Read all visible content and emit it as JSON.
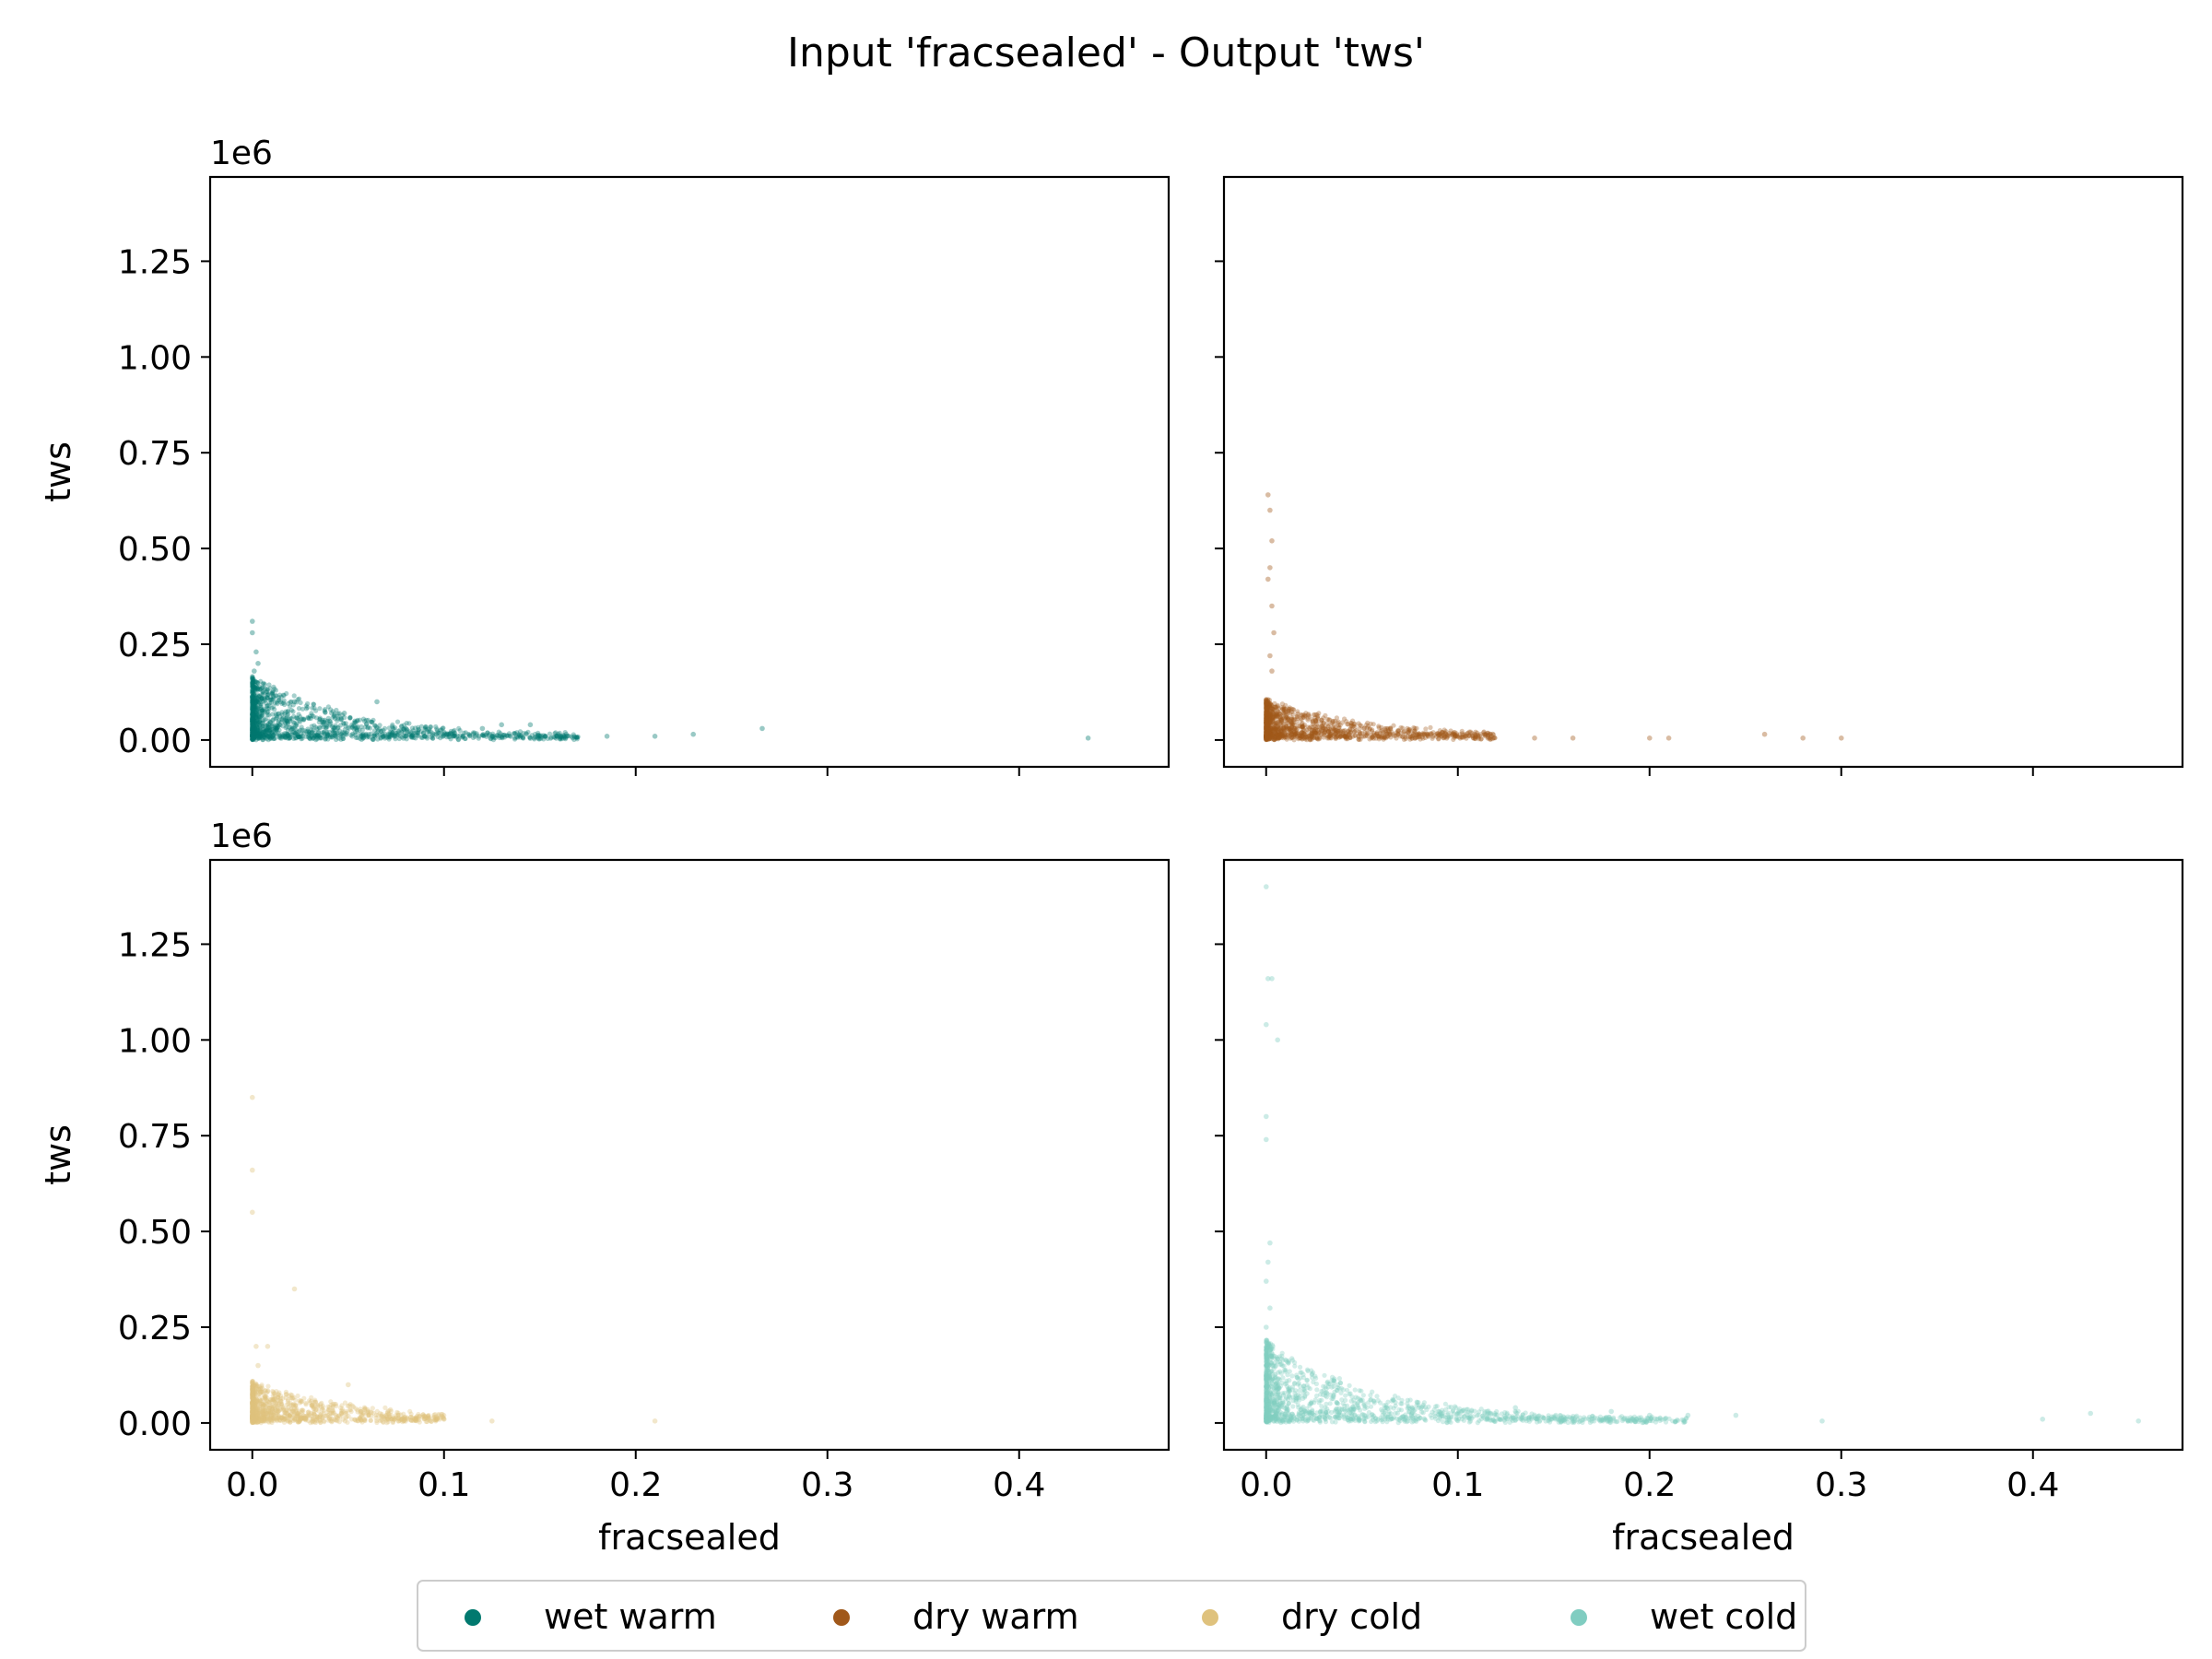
{
  "figure": {
    "title": "Input 'fracsealed' - Output 'tws'"
  },
  "chart_data": [
    {
      "type": "scatter",
      "series_key": "wet_warm",
      "xlabel": "",
      "ylabel": "tws",
      "y_offset_label": "1e6",
      "xlim": [
        -0.022,
        0.478
      ],
      "ylim": [
        -0.07,
        1.47
      ],
      "x_ticks": [
        0.0,
        0.1,
        0.2,
        0.3,
        0.4
      ],
      "y_ticks": [
        0.0,
        0.25,
        0.5,
        0.75,
        1.0,
        1.25
      ],
      "x_tick_labels": [],
      "y_tick_labels": [
        "0.00",
        "0.25",
        "0.50",
        "0.75",
        "1.00",
        "1.25"
      ],
      "color": "#01796f",
      "outliers": [
        [
          0.0,
          0.31
        ],
        [
          0.0,
          0.28
        ],
        [
          0.002,
          0.23
        ],
        [
          0.003,
          0.2
        ],
        [
          0.001,
          0.18
        ],
        [
          0.022,
          0.1
        ],
        [
          0.065,
          0.1
        ],
        [
          0.048,
          0.07
        ],
        [
          0.13,
          0.04
        ],
        [
          0.145,
          0.04
        ],
        [
          0.164,
          0.01
        ],
        [
          0.185,
          0.01
        ],
        [
          0.21,
          0.01
        ],
        [
          0.23,
          0.015
        ],
        [
          0.266,
          0.03
        ],
        [
          0.436,
          0.005
        ],
        [
          0.12,
          0.03
        ],
        [
          0.1,
          0.02
        ],
        [
          0.09,
          0.01
        ]
      ],
      "cluster": {
        "x_max": 0.17,
        "y_max": 0.16,
        "count": 1400
      }
    },
    {
      "type": "scatter",
      "series_key": "dry_warm",
      "xlabel": "",
      "ylabel": "",
      "y_offset_label": "",
      "xlim": [
        -0.022,
        0.478
      ],
      "ylim": [
        -0.07,
        1.47
      ],
      "x_ticks": [
        0.0,
        0.1,
        0.2,
        0.3,
        0.4
      ],
      "y_ticks": [
        0.0,
        0.25,
        0.5,
        0.75,
        1.0,
        1.25
      ],
      "x_tick_labels": [],
      "y_tick_labels": [],
      "color": "#a0581a",
      "outliers": [
        [
          0.001,
          0.64
        ],
        [
          0.002,
          0.6
        ],
        [
          0.003,
          0.52
        ],
        [
          0.002,
          0.45
        ],
        [
          0.001,
          0.42
        ],
        [
          0.003,
          0.35
        ],
        [
          0.004,
          0.28
        ],
        [
          0.002,
          0.22
        ],
        [
          0.003,
          0.18
        ],
        [
          0.01,
          0.08
        ],
        [
          0.02,
          0.06
        ],
        [
          0.14,
          0.005
        ],
        [
          0.16,
          0.005
        ],
        [
          0.2,
          0.005
        ],
        [
          0.21,
          0.005
        ],
        [
          0.26,
          0.015
        ],
        [
          0.28,
          0.005
        ],
        [
          0.3,
          0.005
        ]
      ],
      "cluster": {
        "x_max": 0.12,
        "y_max": 0.1,
        "count": 1300
      }
    },
    {
      "type": "scatter",
      "series_key": "dry_cold",
      "xlabel": "fracsealed",
      "ylabel": "tws",
      "y_offset_label": "1e6",
      "xlim": [
        -0.022,
        0.478
      ],
      "ylim": [
        -0.07,
        1.47
      ],
      "x_ticks": [
        0.0,
        0.1,
        0.2,
        0.3,
        0.4
      ],
      "y_ticks": [
        0.0,
        0.25,
        0.5,
        0.75,
        1.0,
        1.25
      ],
      "x_tick_labels": [
        "0.0",
        "0.1",
        "0.2",
        "0.3",
        "0.4"
      ],
      "y_tick_labels": [
        "0.00",
        "0.25",
        "0.50",
        "0.75",
        "1.00",
        "1.25"
      ],
      "color": "#dfc27d",
      "outliers": [
        [
          0.0,
          0.85
        ],
        [
          0.0,
          0.66
        ],
        [
          0.0,
          0.55
        ],
        [
          0.022,
          0.35
        ],
        [
          0.002,
          0.2
        ],
        [
          0.008,
          0.2
        ],
        [
          0.003,
          0.15
        ],
        [
          0.05,
          0.1
        ],
        [
          0.1,
          0.01
        ],
        [
          0.125,
          0.005
        ],
        [
          0.21,
          0.005
        ]
      ],
      "cluster": {
        "x_max": 0.1,
        "y_max": 0.1,
        "count": 1100
      }
    },
    {
      "type": "scatter",
      "series_key": "wet_cold",
      "xlabel": "fracsealed",
      "ylabel": "",
      "y_offset_label": "",
      "xlim": [
        -0.022,
        0.478
      ],
      "ylim": [
        -0.07,
        1.47
      ],
      "x_ticks": [
        0.0,
        0.1,
        0.2,
        0.3,
        0.4
      ],
      "y_ticks": [
        0.0,
        0.25,
        0.5,
        0.75,
        1.0,
        1.25
      ],
      "x_tick_labels": [
        "0.0",
        "0.1",
        "0.2",
        "0.3",
        "0.4"
      ],
      "y_tick_labels": [],
      "color": "#80cdc1",
      "outliers": [
        [
          0.0,
          1.4
        ],
        [
          0.001,
          1.16
        ],
        [
          0.003,
          1.16
        ],
        [
          0.0,
          1.04
        ],
        [
          0.006,
          1.0
        ],
        [
          0.0,
          0.8
        ],
        [
          0.0,
          0.74
        ],
        [
          0.002,
          0.47
        ],
        [
          0.001,
          0.42
        ],
        [
          0.0,
          0.37
        ],
        [
          0.002,
          0.3
        ],
        [
          0.0,
          0.25
        ],
        [
          0.13,
          0.04
        ],
        [
          0.18,
          0.03
        ],
        [
          0.2,
          0.02
        ],
        [
          0.22,
          0.02
        ],
        [
          0.245,
          0.02
        ],
        [
          0.29,
          0.005
        ],
        [
          0.405,
          0.01
        ],
        [
          0.43,
          0.025
        ],
        [
          0.455,
          0.005
        ]
      ],
      "cluster": {
        "x_max": 0.22,
        "y_max": 0.21,
        "count": 1500
      }
    }
  ],
  "legend": {
    "placement": "bottom-center",
    "items": [
      {
        "key": "wet_warm",
        "label": "wet warm",
        "color": "#01796f"
      },
      {
        "key": "dry_warm",
        "label": "dry warm",
        "color": "#a0581a"
      },
      {
        "key": "dry_cold",
        "label": "dry cold",
        "color": "#dfc27d"
      },
      {
        "key": "wet_cold",
        "label": "wet cold",
        "color": "#80cdc1"
      }
    ]
  }
}
